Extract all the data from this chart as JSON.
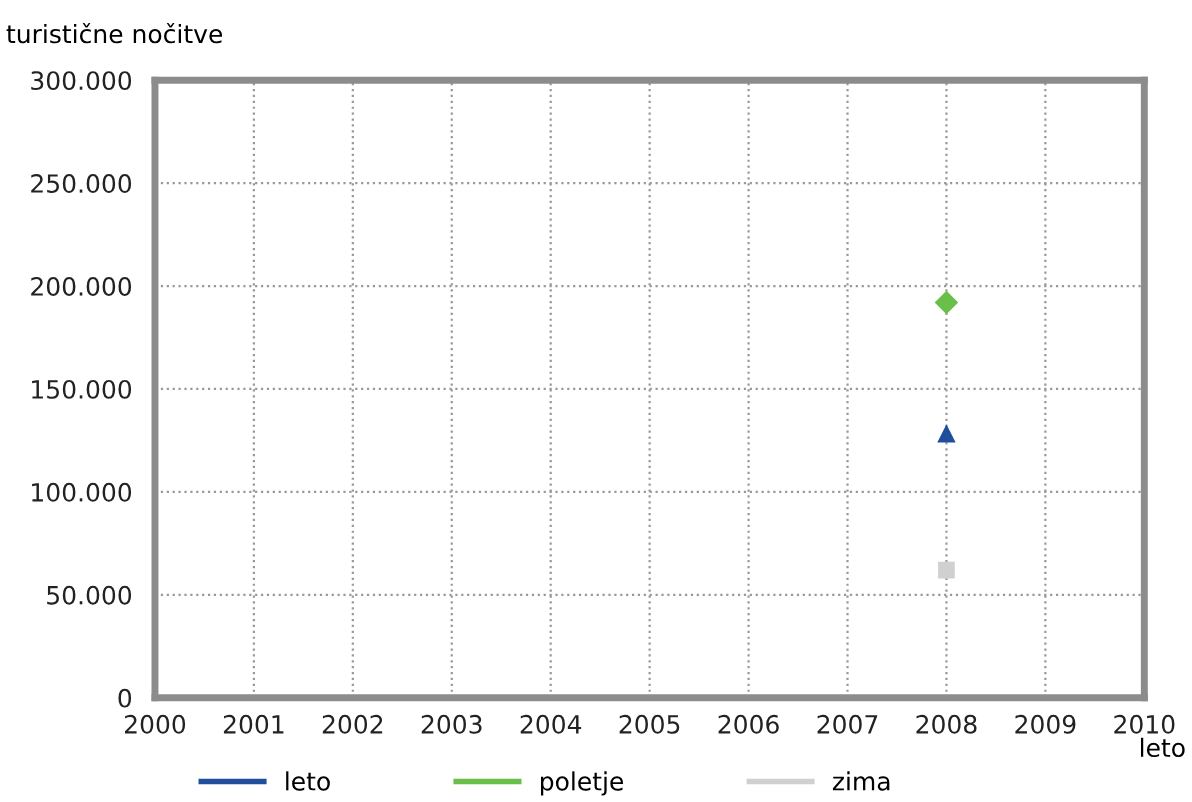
{
  "chart_data": {
    "type": "line",
    "ylabel": "turistične nočitve",
    "xlabel": "leto",
    "xlim": [
      2000,
      2010
    ],
    "xticks": [
      2000,
      2001,
      2002,
      2003,
      2004,
      2005,
      2006,
      2007,
      2008,
      2009,
      2010
    ],
    "ylim": [
      0,
      300000
    ],
    "yticks": [
      0,
      {
        "value": 50000,
        "label": "50.000"
      },
      {
        "value": 100000,
        "label": "100.000"
      },
      {
        "value": 150000,
        "label": "150.000"
      },
      {
        "value": 200000,
        "label": "200.000"
      },
      {
        "value": 250000,
        "label": "250.000"
      },
      {
        "value": 300000,
        "label": "300.000"
      }
    ],
    "x": [
      2008
    ],
    "grid": true,
    "legend": "bottom",
    "line_style": "solid",
    "series": [
      {
        "name": "leto",
        "color": "#1f4e9c",
        "values": [
          128000
        ],
        "marker": "triangle"
      },
      {
        "name": "poletje",
        "color": "#6abf4b",
        "values": [
          192000
        ],
        "marker": "diamond"
      },
      {
        "name": "zima",
        "color": "#d0d0d0",
        "values": [
          62000
        ],
        "marker": "square"
      }
    ]
  }
}
